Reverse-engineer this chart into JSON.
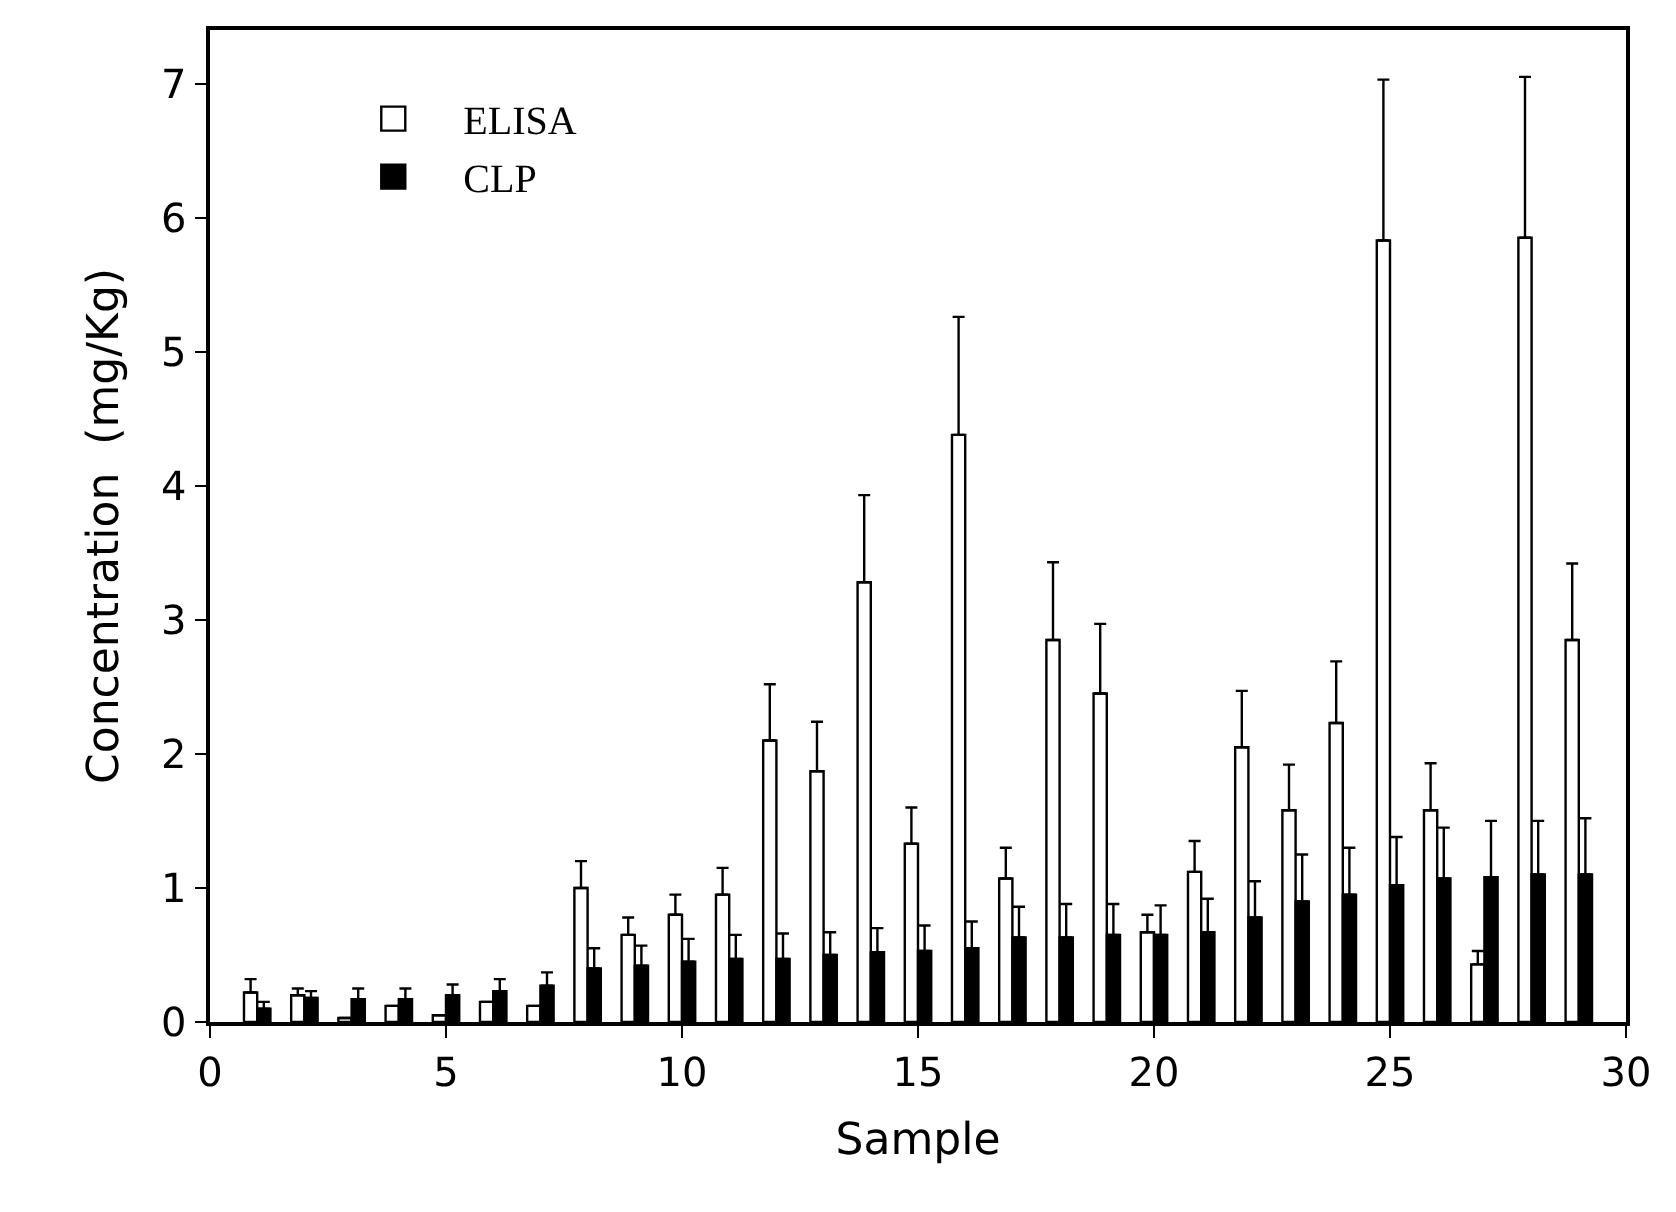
{
  "chart_data": {
    "type": "bar",
    "xlabel": "Sample",
    "ylabel": "Concentration  (mg/Kg)",
    "x": [
      1,
      2,
      3,
      4,
      5,
      6,
      7,
      8,
      9,
      10,
      11,
      12,
      13,
      14,
      15,
      16,
      17,
      18,
      19,
      20,
      21,
      22,
      23,
      24,
      25,
      26,
      27,
      28,
      29
    ],
    "series": [
      {
        "name": "ELISA",
        "color": "#ffffff",
        "values": [
          0.22,
          0.2,
          0.03,
          0.12,
          0.05,
          0.15,
          0.12,
          1.0,
          0.65,
          0.8,
          0.95,
          2.1,
          1.87,
          3.28,
          1.33,
          4.38,
          1.07,
          2.85,
          2.45,
          0.67,
          1.12,
          2.05,
          1.58,
          2.23,
          5.83,
          1.58,
          0.43,
          5.85,
          2.85
        ],
        "errors": [
          [
            0.22,
            0.32
          ],
          [
            0.2,
            0.25
          ],
          null,
          null,
          null,
          null,
          null,
          [
            1.0,
            1.2
          ],
          [
            0.65,
            0.78
          ],
          [
            0.8,
            0.95
          ],
          [
            0.95,
            1.15
          ],
          [
            2.1,
            2.52
          ],
          [
            1.87,
            2.24
          ],
          [
            3.28,
            3.93
          ],
          [
            1.33,
            1.6
          ],
          [
            4.38,
            5.26
          ],
          [
            1.07,
            1.3
          ],
          [
            2.85,
            3.43
          ],
          [
            2.45,
            2.97
          ],
          [
            0.67,
            0.8
          ],
          [
            1.12,
            1.35
          ],
          [
            2.05,
            2.47
          ],
          [
            1.58,
            1.92
          ],
          [
            2.23,
            2.69
          ],
          [
            5.83,
            7.03
          ],
          [
            1.58,
            1.93
          ],
          [
            0.43,
            0.53
          ],
          [
            5.85,
            7.05
          ],
          [
            2.85,
            3.42
          ]
        ]
      },
      {
        "name": "CLP",
        "color": "#000000",
        "values": [
          0.1,
          0.18,
          0.17,
          0.17,
          0.2,
          0.23,
          0.27,
          0.4,
          0.42,
          0.45,
          0.47,
          0.47,
          0.5,
          0.52,
          0.53,
          0.55,
          0.63,
          0.63,
          0.65,
          0.65,
          0.67,
          0.78,
          0.9,
          0.95,
          1.02,
          1.07,
          1.08,
          1.1,
          1.1
        ],
        "errors": [
          [
            0.1,
            0.15
          ],
          [
            0.18,
            0.23
          ],
          [
            0.17,
            0.25
          ],
          [
            0.17,
            0.25
          ],
          [
            0.2,
            0.28
          ],
          [
            0.23,
            0.32
          ],
          [
            0.27,
            0.37
          ],
          [
            0.4,
            0.55
          ],
          [
            0.42,
            0.57
          ],
          [
            0.45,
            0.62
          ],
          [
            0.47,
            0.65
          ],
          [
            0.47,
            0.66
          ],
          [
            0.5,
            0.67
          ],
          [
            0.52,
            0.7
          ],
          [
            0.53,
            0.72
          ],
          [
            0.55,
            0.75
          ],
          [
            0.63,
            0.86
          ],
          [
            0.63,
            0.88
          ],
          [
            0.65,
            0.88
          ],
          [
            0.65,
            0.87
          ],
          [
            0.67,
            0.92
          ],
          [
            0.78,
            1.05
          ],
          [
            0.9,
            1.25
          ],
          [
            0.95,
            1.3
          ],
          [
            1.02,
            1.38
          ],
          [
            1.07,
            1.45
          ],
          [
            1.08,
            1.5
          ],
          [
            1.1,
            1.5
          ],
          [
            1.1,
            1.52
          ]
        ]
      }
    ],
    "xlim": [
      0,
      30
    ],
    "xticks": [
      0,
      5,
      10,
      15,
      20,
      25,
      30
    ],
    "ylim": [
      0,
      7.4
    ],
    "yticks": [
      0,
      1,
      2,
      3,
      4,
      5,
      6,
      7
    ],
    "legend": "top left"
  }
}
